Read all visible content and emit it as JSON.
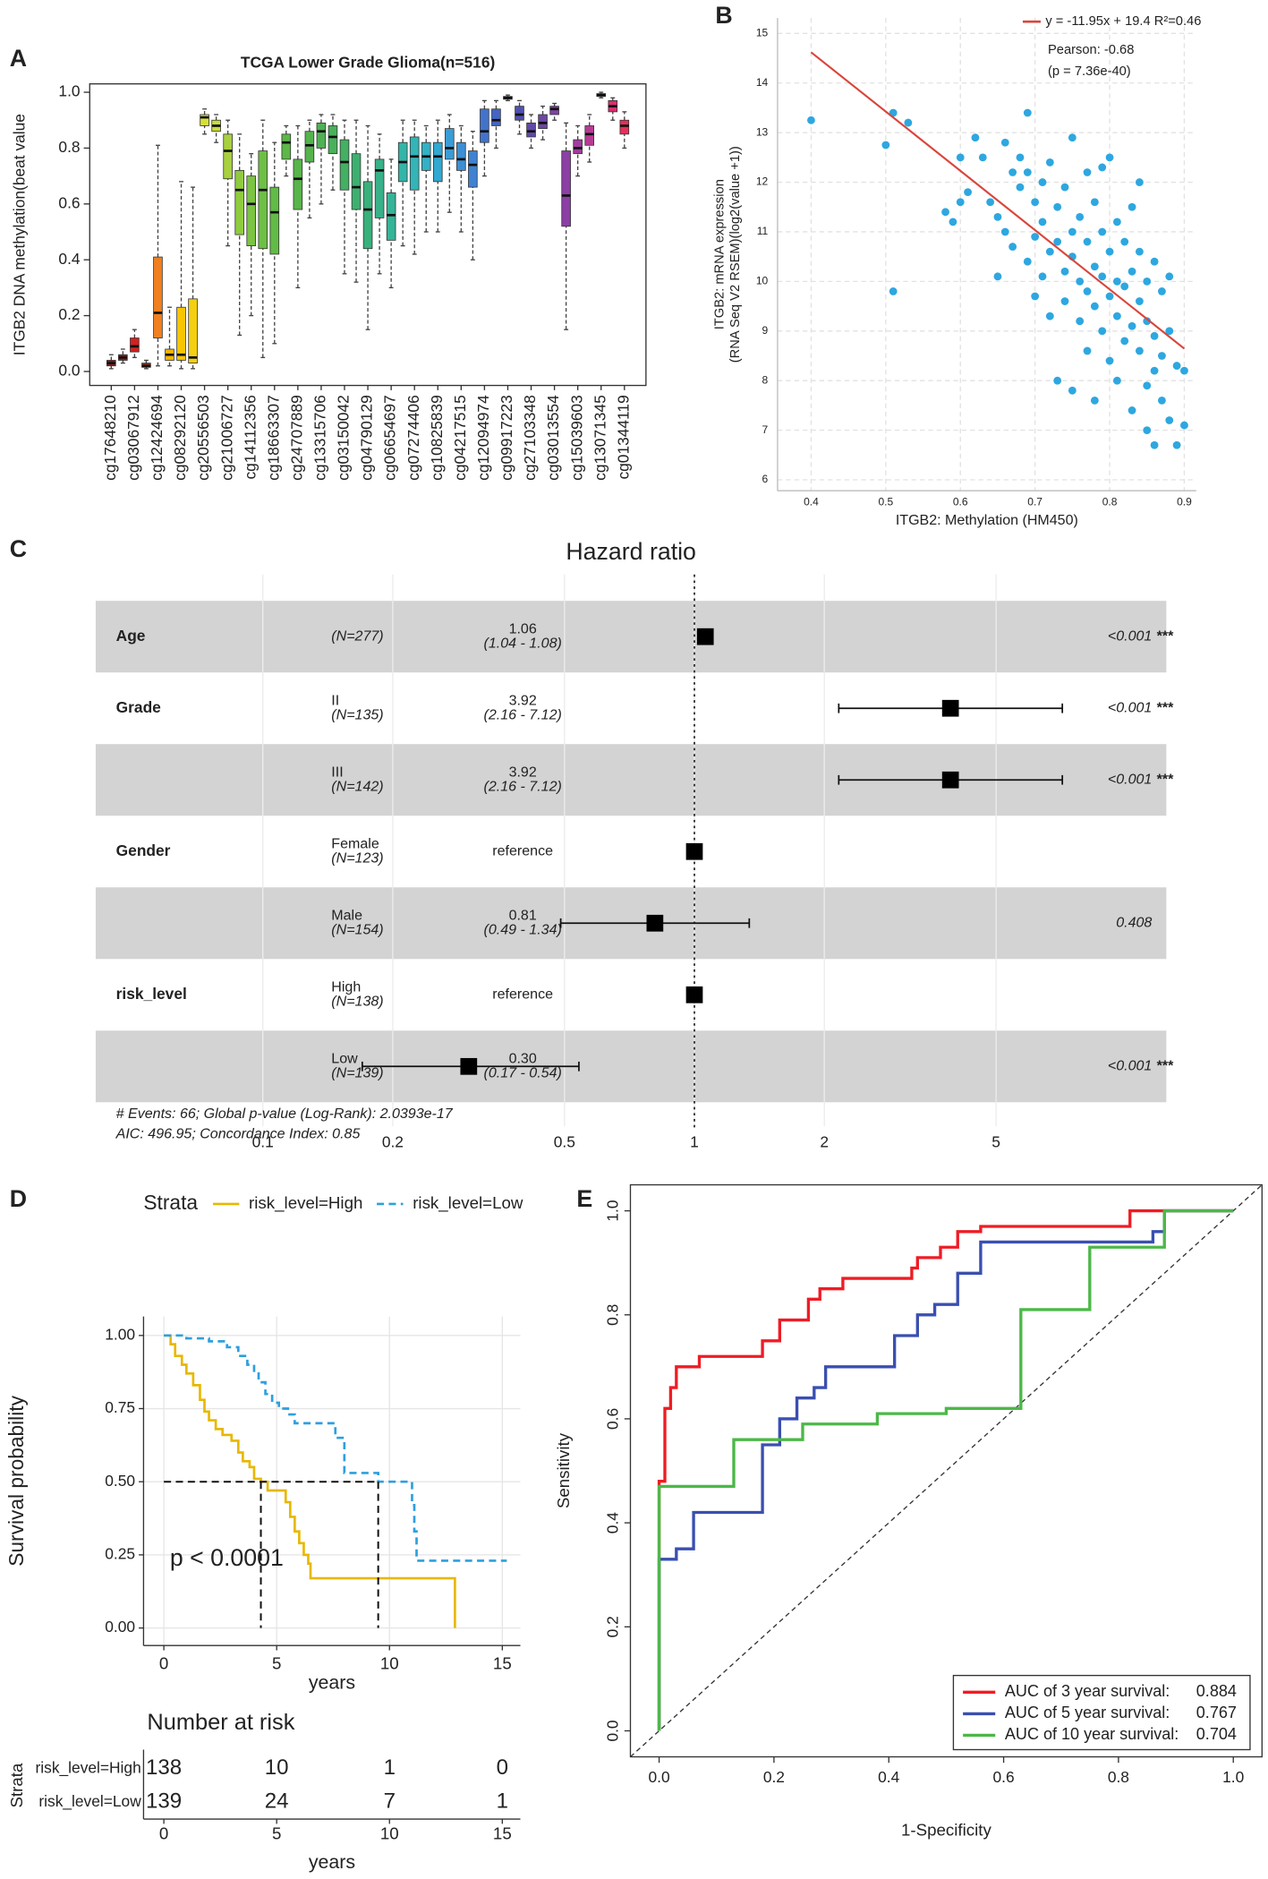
{
  "chart_data": [
    {
      "type": "box",
      "label": "A",
      "title": "TCGA Lower Grade Glioma(n=516)",
      "ylabel": "ITGB2 DNA methylation(beat value",
      "categories": [
        "cg17648210",
        null,
        "cg03067912",
        null,
        "cg12424694",
        null,
        "cg08292120",
        null,
        "cg20556503",
        null,
        "cg21006727",
        null,
        "cg14112356",
        null,
        "cg18663307",
        null,
        "cg24707889",
        null,
        "cg13315706",
        null,
        "cg03150042",
        null,
        "cg04790129",
        null,
        "cg06654697",
        null,
        "cg07274406",
        null,
        "cg10825839",
        null,
        "cg04217515",
        null,
        "cg12094974",
        null,
        "cg09917223",
        null,
        "cg27103348",
        null,
        "cg03013554",
        null,
        "cg15039603",
        null,
        "cg13071345",
        null,
        "cg01344119"
      ],
      "stats": [
        [
          0.01,
          0.02,
          0.03,
          0.04,
          0.06
        ],
        [
          0.03,
          0.04,
          0.05,
          0.06,
          0.08
        ],
        [
          0.05,
          0.07,
          0.09,
          0.12,
          0.15
        ],
        [
          0.01,
          0.015,
          0.02,
          0.03,
          0.04
        ],
        [
          0.02,
          0.12,
          0.21,
          0.41,
          0.81
        ],
        [
          0.02,
          0.04,
          0.06,
          0.08,
          0.23
        ],
        [
          0.01,
          0.04,
          0.06,
          0.23,
          0.68
        ],
        [
          0.01,
          0.03,
          0.05,
          0.26,
          0.66
        ],
        [
          0.85,
          0.88,
          0.91,
          0.92,
          0.94
        ],
        [
          0.82,
          0.86,
          0.88,
          0.9,
          0.92
        ],
        [
          0.45,
          0.69,
          0.79,
          0.85,
          0.9
        ],
        [
          0.13,
          0.49,
          0.65,
          0.72,
          0.85
        ],
        [
          0.2,
          0.45,
          0.6,
          0.7,
          0.78
        ],
        [
          0.05,
          0.44,
          0.65,
          0.79,
          0.9
        ],
        [
          0.1,
          0.42,
          0.57,
          0.66,
          0.82
        ],
        [
          0.7,
          0.76,
          0.82,
          0.85,
          0.88
        ],
        [
          0.3,
          0.58,
          0.69,
          0.76,
          0.88
        ],
        [
          0.55,
          0.75,
          0.81,
          0.86,
          0.9
        ],
        [
          0.6,
          0.8,
          0.86,
          0.89,
          0.92
        ],
        [
          0.65,
          0.78,
          0.84,
          0.88,
          0.92
        ],
        [
          0.35,
          0.65,
          0.75,
          0.83,
          0.9
        ],
        [
          0.32,
          0.58,
          0.66,
          0.78,
          0.9
        ],
        [
          0.15,
          0.44,
          0.58,
          0.68,
          0.88
        ],
        [
          0.35,
          0.55,
          0.72,
          0.76,
          0.85
        ],
        [
          0.3,
          0.47,
          0.56,
          0.64,
          0.76
        ],
        [
          0.45,
          0.68,
          0.75,
          0.82,
          0.9
        ],
        [
          0.42,
          0.65,
          0.77,
          0.84,
          0.9
        ],
        [
          0.5,
          0.72,
          0.77,
          0.82,
          0.88
        ],
        [
          0.5,
          0.68,
          0.77,
          0.82,
          0.9
        ],
        [
          0.57,
          0.76,
          0.8,
          0.87,
          0.92
        ],
        [
          0.5,
          0.72,
          0.76,
          0.82,
          0.88
        ],
        [
          0.4,
          0.66,
          0.74,
          0.79,
          0.86
        ],
        [
          0.7,
          0.82,
          0.86,
          0.94,
          0.97
        ],
        [
          0.8,
          0.88,
          0.9,
          0.94,
          0.97
        ],
        [
          0.97,
          0.975,
          0.98,
          0.985,
          0.99
        ],
        [
          0.85,
          0.9,
          0.92,
          0.95,
          0.97
        ],
        [
          0.8,
          0.84,
          0.86,
          0.89,
          0.92
        ],
        [
          0.83,
          0.87,
          0.89,
          0.92,
          0.95
        ],
        [
          0.9,
          0.92,
          0.94,
          0.95,
          0.96
        ],
        [
          0.15,
          0.52,
          0.63,
          0.79,
          0.89
        ],
        [
          0.7,
          0.78,
          0.8,
          0.83,
          0.88
        ],
        [
          0.75,
          0.81,
          0.85,
          0.88,
          0.92
        ],
        [
          0.98,
          0.985,
          0.99,
          0.995,
          1.0
        ],
        [
          0.9,
          0.93,
          0.95,
          0.97,
          0.98
        ],
        [
          0.8,
          0.85,
          0.88,
          0.9,
          0.93
        ]
      ],
      "colors": [
        "#8b1a1a",
        "#a01818",
        "#d42020",
        "#a82a10",
        "#f08020",
        "#f5b400",
        "#f7c600",
        "#f5cf10",
        "#d7df3a",
        "#c8dc3a",
        "#a8d040",
        "#8fcb3f",
        "#7cc443",
        "#6dbf45",
        "#62bb46",
        "#5cb848",
        "#58b54a",
        "#55b34d",
        "#4fb153",
        "#49b05b",
        "#43b064",
        "#3db06f",
        "#3ab07b",
        "#38b189",
        "#36b498",
        "#34b5a8",
        "#33b5b8",
        "#33b1c6",
        "#33a8d0",
        "#3a9cd5",
        "#3c8fd5",
        "#3f82d3",
        "#4273cc",
        "#4466c2",
        "#4a58b8",
        "#5150b0",
        "#5f4aa8",
        "#6e46a5",
        "#7e42a5",
        "#8c3fa5",
        "#a23ca0",
        "#b83a95",
        "#cc3585",
        "#dc2f70",
        "#e8305a"
      ],
      "ylim": [
        -0.05,
        1.03
      ],
      "yticks": [
        {
          "value": 0,
          "label": "0.0"
        },
        0.2,
        0.4,
        0.6,
        0.8,
        {
          "value": 1,
          "label": "1.0"
        }
      ]
    },
    {
      "type": "scatter",
      "label": "B",
      "xlabel": "ITGB2: Methylation (HM450)",
      "ylabel": [
        "ITGB2: mRNA expression",
        "(RNA Seq V2 RSEM)(log2(value +1))"
      ],
      "x": [
        0.4,
        0.5,
        0.51,
        0.53,
        0.51,
        0.69,
        0.58,
        0.59,
        0.6,
        0.61,
        0.62,
        0.63,
        0.64,
        0.65,
        0.66,
        0.66,
        0.67,
        0.67,
        0.68,
        0.68,
        0.69,
        0.69,
        0.7,
        0.7,
        0.7,
        0.71,
        0.71,
        0.71,
        0.72,
        0.72,
        0.72,
        0.73,
        0.73,
        0.73,
        0.74,
        0.74,
        0.74,
        0.75,
        0.75,
        0.75,
        0.75,
        0.76,
        0.76,
        0.76,
        0.77,
        0.77,
        0.77,
        0.77,
        0.78,
        0.78,
        0.78,
        0.78,
        0.79,
        0.79,
        0.79,
        0.8,
        0.8,
        0.8,
        0.8,
        0.81,
        0.81,
        0.81,
        0.81,
        0.82,
        0.82,
        0.82,
        0.83,
        0.83,
        0.83,
        0.83,
        0.84,
        0.84,
        0.84,
        0.85,
        0.85,
        0.85,
        0.85,
        0.86,
        0.86,
        0.86,
        0.86,
        0.87,
        0.87,
        0.87,
        0.88,
        0.88,
        0.88,
        0.89,
        0.89,
        0.9,
        0.9,
        0.84,
        0.79,
        0.65,
        0.6
      ],
      "y": [
        13.25,
        12.75,
        13.4,
        13.2,
        9.8,
        13.4,
        11.4,
        11.2,
        12.5,
        11.8,
        12.9,
        12.5,
        11.6,
        11.3,
        12.8,
        11.0,
        12.2,
        10.7,
        12.5,
        11.9,
        12.2,
        10.4,
        11.6,
        10.9,
        9.7,
        12.0,
        11.2,
        10.1,
        12.4,
        10.6,
        9.3,
        11.5,
        10.8,
        8.0,
        11.9,
        10.2,
        9.6,
        12.9,
        11.0,
        10.5,
        7.8,
        11.3,
        10.0,
        9.2,
        12.2,
        10.8,
        9.8,
        8.6,
        11.6,
        10.3,
        9.5,
        7.6,
        11.0,
        10.1,
        9.0,
        12.5,
        10.6,
        9.7,
        8.4,
        11.2,
        10.0,
        9.3,
        8.0,
        10.8,
        9.9,
        8.8,
        11.5,
        10.2,
        9.1,
        7.4,
        10.6,
        9.6,
        8.6,
        10.0,
        9.2,
        7.9,
        7.0,
        10.4,
        8.9,
        8.2,
        6.7,
        9.8,
        8.5,
        7.6,
        10.1,
        9.0,
        7.2,
        8.3,
        6.7,
        8.2,
        7.1,
        12.0,
        12.3,
        10.1,
        11.6
      ],
      "color": "#2ea7e0",
      "xlim": [
        0.355,
        0.916
      ],
      "xticks": [
        0.4,
        0.5,
        0.6,
        0.7,
        0.8,
        0.9
      ],
      "ylim": [
        5.78,
        15.31
      ],
      "yticks": [
        6,
        7,
        8,
        9,
        10,
        11,
        12,
        13,
        14,
        15
      ],
      "grid": true,
      "fit": {
        "slope": -11.95,
        "intercept": 19.4,
        "x": [
          0.4,
          0.9
        ],
        "color": "#d9453b"
      },
      "fit_label": "y = -11.95x + 19.4  R²=0.46",
      "annotations": [
        "Pearson: -0.68",
        "(p = 7.36e-40)"
      ]
    },
    {
      "type": "forest",
      "label": "C",
      "title": "Hazard ratio",
      "variables": [
        "Age",
        "Grade",
        null,
        "Gender",
        null,
        "risk_level",
        null
      ],
      "levels": [
        null,
        "II",
        "III",
        "Female",
        "Male",
        "High",
        "Low"
      ],
      "n_labels": [
        "(N=277)",
        "(N=135)",
        "(N=142)",
        "(N=123)",
        "(N=154)",
        "(N=138)",
        "(N=139)"
      ],
      "values": [
        1.06,
        3.92,
        3.92,
        1,
        0.81,
        1,
        0.3
      ],
      "value_labels": [
        "1.06",
        "3.92",
        "3.92",
        "reference",
        "0.81",
        "reference",
        "0.30"
      ],
      "lower": [
        1.04,
        2.16,
        2.16,
        null,
        0.49,
        null,
        0.17
      ],
      "upper": [
        1.08,
        7.12,
        7.12,
        null,
        1.34,
        null,
        0.54
      ],
      "ci_labels": [
        "(1.04 - 1.08)",
        "(2.16 - 7.12)",
        "(2.16 - 7.12)",
        null,
        "(0.49 - 1.34)",
        null,
        "(0.17 - 0.54)"
      ],
      "p_labels": [
        "<0.001",
        "<0.001",
        "<0.001",
        null,
        "0.408",
        null,
        "<0.001"
      ],
      "stars": [
        "***",
        "***",
        "***",
        null,
        null,
        null,
        "***"
      ],
      "reference_line": 1,
      "log_x": true,
      "xlim": [
        0.041,
        12.4
      ],
      "xticks": [
        0.1,
        0.2,
        0.5,
        1,
        2,
        5
      ],
      "footer": [
        "# Events: 66; Global p-value (Log-Rank): 2.0393e-17",
        "AIC: 496.95; Concordance Index: 0.85"
      ]
    },
    {
      "type": "survival",
      "label": "D",
      "legend_title": "Strata",
      "xlabel": "years",
      "ylabel": "Survival probability",
      "pvalue": "p < 0.0001",
      "series": [
        {
          "name": "risk_level=High",
          "color": "#E7B800",
          "linestyle": "solid",
          "x": [
            0,
            0.3,
            0.5,
            0.8,
            1,
            1.3,
            1.6,
            1.8,
            2,
            2.3,
            2.6,
            3,
            3.3,
            3.5,
            3.8,
            4,
            4.3,
            4.6,
            5.4,
            5.6,
            5.8,
            6,
            6.2,
            6.4,
            6.5,
            12.9,
            12.9
          ],
          "values": [
            1,
            0.97,
            0.93,
            0.9,
            0.87,
            0.83,
            0.78,
            0.74,
            0.71,
            0.68,
            0.66,
            0.64,
            0.6,
            0.57,
            0.55,
            0.51,
            0.5,
            0.47,
            0.43,
            0.38,
            0.33,
            0.29,
            0.25,
            0.22,
            0.17,
            0.17,
            0
          ]
        },
        {
          "name": "risk_level=Low",
          "color": "#2E9FDF",
          "linestyle": "dashed",
          "x": [
            0,
            1,
            2,
            2.8,
            3.3,
            3.7,
            4,
            4.2,
            4.5,
            4.8,
            5.1,
            5.5,
            5.8,
            7.6,
            8,
            8,
            9.5,
            11,
            11.1,
            11.2,
            15.2
          ],
          "values": [
            1,
            0.99,
            0.98,
            0.96,
            0.93,
            0.9,
            0.87,
            0.84,
            0.8,
            0.77,
            0.75,
            0.73,
            0.7,
            0.65,
            0.59,
            0.53,
            0.5,
            0.42,
            0.33,
            0.23,
            0.23
          ]
        }
      ],
      "xlim": [
        -0.9,
        15.8
      ],
      "xticks": [
        0,
        5,
        10,
        15
      ],
      "ylim": [
        -0.06,
        1.065
      ],
      "yticks": [
        {
          "value": 0,
          "label": "0.00"
        },
        0.25,
        {
          "value": 0.5,
          "label": "0.50"
        },
        0.75,
        {
          "value": 1,
          "label": "1.00"
        }
      ],
      "grid": true,
      "median_survival": {
        "y": 0.5,
        "x": [
          4.3,
          9.5
        ]
      },
      "risk_title": "Number at risk",
      "risk_ylabel": "Strata",
      "risk_xlabel": "years",
      "risk_times": [
        0,
        5,
        10,
        15
      ],
      "risk": [
        [
          138,
          10,
          1,
          0
        ],
        [
          139,
          24,
          7,
          1
        ]
      ]
    },
    {
      "type": "roc",
      "label": "E",
      "xlabel": "1-Specificity",
      "ylabel": "Sensitivity",
      "series": [
        {
          "name": "AUC of 3 year survival:",
          "auc": 0.884,
          "color": "#ee1c25",
          "x": [
            0,
            0,
            0.01,
            0.01,
            0.02,
            0.02,
            0.03,
            0.03,
            0.07,
            0.07,
            0.18,
            0.18,
            0.21,
            0.21,
            0.26,
            0.26,
            0.28,
            0.28,
            0.32,
            0.32,
            0.44,
            0.44,
            0.45,
            0.45,
            0.49,
            0.49,
            0.52,
            0.52,
            0.56,
            0.56,
            0.82,
            0.82,
            1
          ],
          "values": [
            0,
            0.48,
            0.48,
            0.62,
            0.62,
            0.66,
            0.66,
            0.7,
            0.7,
            0.72,
            0.72,
            0.75,
            0.75,
            0.79,
            0.79,
            0.83,
            0.83,
            0.85,
            0.85,
            0.87,
            0.87,
            0.89,
            0.89,
            0.91,
            0.91,
            0.93,
            0.93,
            0.96,
            0.96,
            0.97,
            0.97,
            1,
            1
          ]
        },
        {
          "name": "AUC of 5 year survival:",
          "auc": 0.767,
          "color": "#3a4fb0",
          "x": [
            0,
            0,
            0.03,
            0.03,
            0.06,
            0.06,
            0.18,
            0.18,
            0.21,
            0.21,
            0.24,
            0.24,
            0.27,
            0.27,
            0.29,
            0.29,
            0.41,
            0.41,
            0.45,
            0.45,
            0.48,
            0.48,
            0.52,
            0.52,
            0.56,
            0.56,
            0.86,
            0.86,
            0.88,
            0.88,
            1
          ],
          "values": [
            0,
            0.33,
            0.33,
            0.35,
            0.35,
            0.42,
            0.42,
            0.55,
            0.55,
            0.6,
            0.6,
            0.64,
            0.64,
            0.66,
            0.66,
            0.7,
            0.7,
            0.76,
            0.76,
            0.8,
            0.8,
            0.82,
            0.82,
            0.88,
            0.88,
            0.94,
            0.94,
            0.96,
            0.96,
            1,
            1
          ]
        },
        {
          "name": "AUC of 10 year survival:",
          "auc": 0.704,
          "color": "#4cb848",
          "x": [
            0,
            0,
            0.13,
            0.13,
            0.25,
            0.25,
            0.38,
            0.38,
            0.5,
            0.5,
            0.63,
            0.63,
            0.75,
            0.75,
            0.88,
            0.88,
            1
          ],
          "values": [
            0,
            0.47,
            0.47,
            0.56,
            0.56,
            0.59,
            0.59,
            0.61,
            0.61,
            0.62,
            0.62,
            0.81,
            0.81,
            0.93,
            0.93,
            1,
            1
          ]
        }
      ],
      "xlim": [
        -0.05,
        1.05
      ],
      "ylim": [
        -0.05,
        1.05
      ],
      "xticks": [
        {
          "value": 0,
          "label": "0.0"
        },
        0.2,
        0.4,
        0.6,
        0.8,
        {
          "value": 1,
          "label": "1.0"
        }
      ],
      "yticks": [
        {
          "value": 0,
          "label": "0.0"
        },
        0.2,
        0.4,
        0.6,
        0.8,
        {
          "value": 1,
          "label": "1.0"
        }
      ]
    }
  ]
}
